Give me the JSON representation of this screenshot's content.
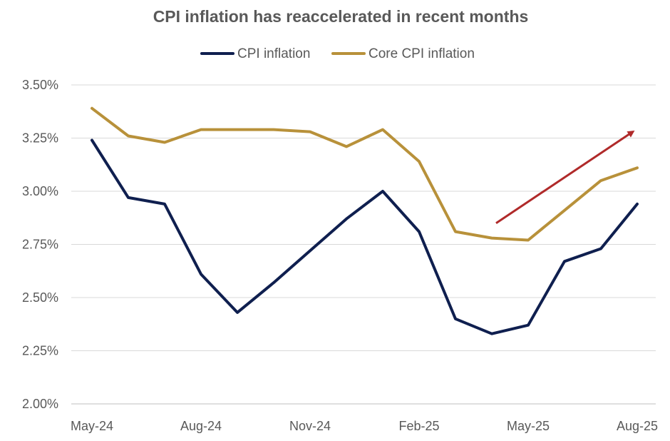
{
  "chart_data": {
    "type": "line",
    "title": "CPI inflation has reaccelerated in recent months",
    "xlabel": "",
    "ylabel": "",
    "x": [
      "May-24",
      "Jun-24",
      "Jul-24",
      "Aug-24",
      "Sep-24",
      "Oct-24",
      "Nov-24",
      "Dec-24",
      "Jan-25",
      "Feb-25",
      "Mar-25",
      "Apr-25",
      "May-25",
      "Jun-25",
      "Jul-25",
      "Aug-25"
    ],
    "x_tick_labels": [
      "May-24",
      "Aug-24",
      "Nov-24",
      "Feb-25",
      "May-25",
      "Aug-25"
    ],
    "y_tick_labels": [
      "2.00%",
      "2.25%",
      "2.50%",
      "2.75%",
      "3.00%",
      "3.25%",
      "3.50%"
    ],
    "y_ticks": [
      2.0,
      2.25,
      2.5,
      2.75,
      3.0,
      3.25,
      3.5
    ],
    "ylim": [
      2.0,
      3.5
    ],
    "grid": true,
    "legend_position": "top",
    "series": [
      {
        "name": "CPI inflation",
        "color": "#0f1f4f",
        "values": [
          3.24,
          2.97,
          2.94,
          2.61,
          2.43,
          2.57,
          2.72,
          2.87,
          3.0,
          2.81,
          2.4,
          2.33,
          2.37,
          2.67,
          2.73,
          2.94
        ]
      },
      {
        "name": "Core CPI inflation",
        "color": "#b8913a",
        "values": [
          3.39,
          3.26,
          3.23,
          3.29,
          3.29,
          3.29,
          3.28,
          3.21,
          3.29,
          3.14,
          2.81,
          2.78,
          2.77,
          2.91,
          3.05,
          3.11
        ]
      }
    ],
    "annotation": {
      "type": "arrow",
      "color": "#b02a2a",
      "from": {
        "x": "Apr-25",
        "y": 2.85
      },
      "to": {
        "x": "Aug-25",
        "y": 3.28
      }
    }
  }
}
